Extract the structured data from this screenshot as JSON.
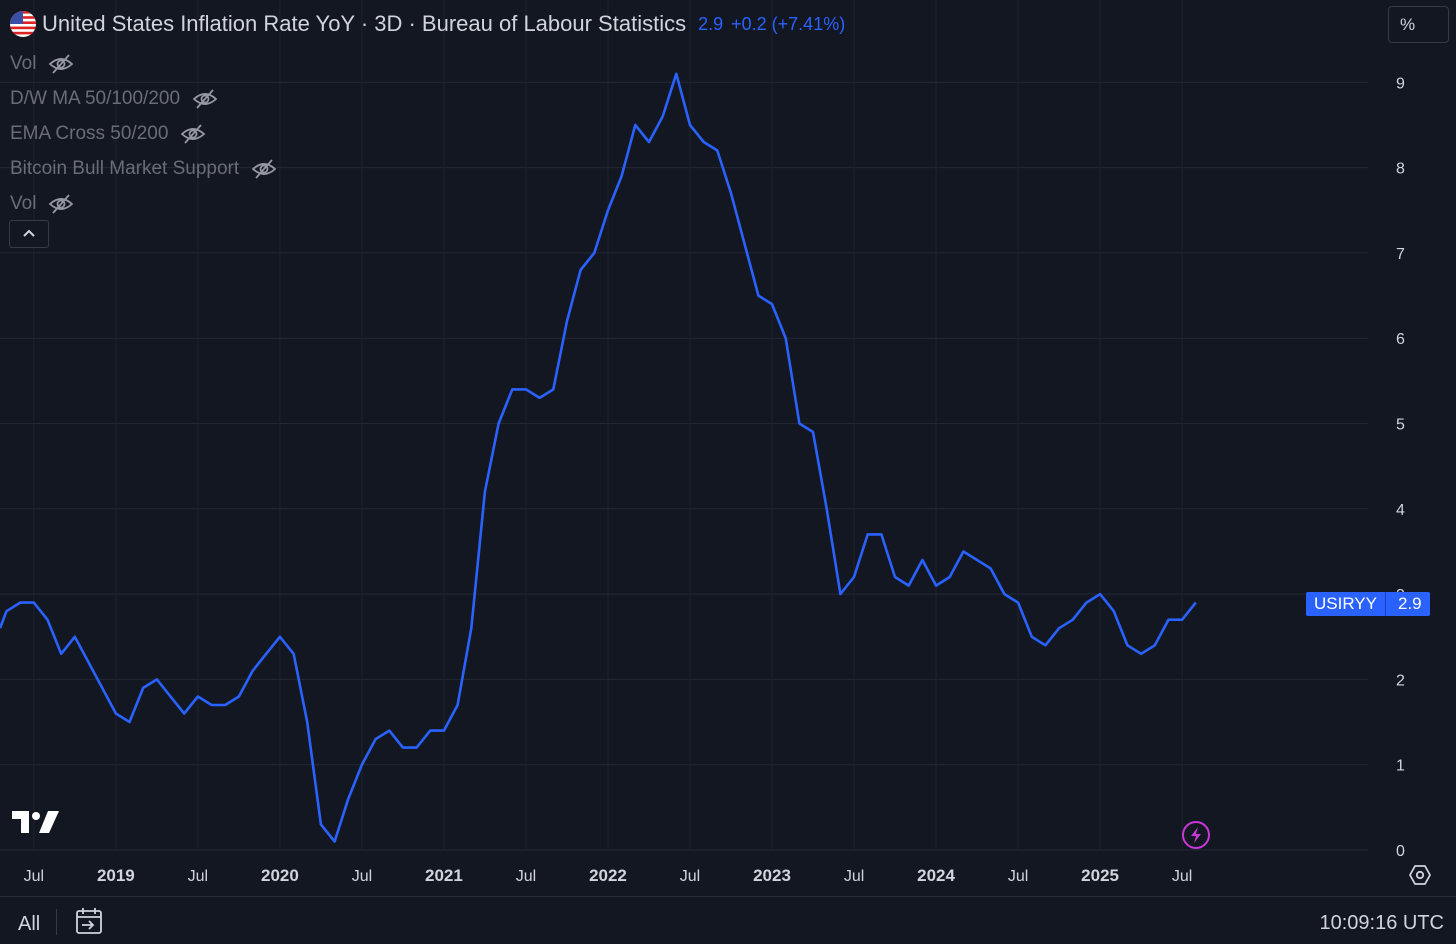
{
  "header": {
    "title": "United States Inflation Rate YoY · 3D · Bureau of Labour Statistics",
    "value": "2.9",
    "change": "+0.2 (+7.41%)"
  },
  "indicators": [
    {
      "label": "Vol"
    },
    {
      "label": "D/W MA 50/100/200"
    },
    {
      "label": "EMA Cross 50/200"
    },
    {
      "label": "Bitcoin Bull Market Support"
    },
    {
      "label": "Vol"
    }
  ],
  "scale_button": "%",
  "price_tag": {
    "symbol": "USIRYY",
    "value": "2.9"
  },
  "footer": {
    "range": "All",
    "time": "10:09:16 UTC"
  },
  "icons": [
    "us-flag-icon",
    "eye-off-icon",
    "chevron-up-icon",
    "tradingview-logo",
    "lightning-icon",
    "settings-icon",
    "calendar-range-icon"
  ],
  "colors": {
    "background": "#131722",
    "line": "#2962ff",
    "grid": "#2a2e39",
    "text": "#d1d4dc",
    "muted": "#6a6d78",
    "lightning": "#c837d8"
  },
  "chart_data": {
    "type": "line",
    "series": [
      {
        "name": "USIRYY",
        "x": [
          "2018-05",
          "2018-06",
          "2018-07",
          "2018-08",
          "2018-09",
          "2018-10",
          "2018-11",
          "2018-12",
          "2019-01",
          "2019-02",
          "2019-03",
          "2019-04",
          "2019-05",
          "2019-06",
          "2019-07",
          "2019-08",
          "2019-09",
          "2019-10",
          "2019-11",
          "2019-12",
          "2020-01",
          "2020-02",
          "2020-03",
          "2020-04",
          "2020-05",
          "2020-06",
          "2020-07",
          "2020-08",
          "2020-09",
          "2020-10",
          "2020-11",
          "2020-12",
          "2021-01",
          "2021-02",
          "2021-03",
          "2021-04",
          "2021-05",
          "2021-06",
          "2021-07",
          "2021-08",
          "2021-09",
          "2021-10",
          "2021-11",
          "2021-12",
          "2022-01",
          "2022-02",
          "2022-03",
          "2022-04",
          "2022-05",
          "2022-06",
          "2022-07",
          "2022-08",
          "2022-09",
          "2022-10",
          "2022-11",
          "2022-12",
          "2023-01",
          "2023-02",
          "2023-03",
          "2023-04",
          "2023-05",
          "2023-06",
          "2023-07",
          "2023-08",
          "2023-09",
          "2023-10",
          "2023-11",
          "2023-12",
          "2024-01",
          "2024-02",
          "2024-03",
          "2024-04",
          "2024-05",
          "2024-06",
          "2024-07",
          "2024-08",
          "2024-09",
          "2024-10",
          "2024-11",
          "2024-12",
          "2025-01",
          "2025-02",
          "2025-03",
          "2025-04",
          "2025-05",
          "2025-06",
          "2025-07",
          "2025-08"
        ],
        "y": [
          2.8,
          2.9,
          2.9,
          2.7,
          2.3,
          2.5,
          2.2,
          1.9,
          1.6,
          1.5,
          1.9,
          2.0,
          1.8,
          1.6,
          1.8,
          1.7,
          1.7,
          1.8,
          2.1,
          2.3,
          2.5,
          2.3,
          1.5,
          0.3,
          0.1,
          0.6,
          1.0,
          1.3,
          1.4,
          1.2,
          1.2,
          1.4,
          1.4,
          1.7,
          2.6,
          4.2,
          5.0,
          5.4,
          5.4,
          5.3,
          5.4,
          6.2,
          6.8,
          7.0,
          7.5,
          7.9,
          8.5,
          8.3,
          8.6,
          9.1,
          8.5,
          8.3,
          8.2,
          7.7,
          7.1,
          6.5,
          6.4,
          6.0,
          5.0,
          4.9,
          4.0,
          3.0,
          3.2,
          3.7,
          3.7,
          3.2,
          3.1,
          3.4,
          3.1,
          3.2,
          3.5,
          3.4,
          3.3,
          3.0,
          2.9,
          2.5,
          2.4,
          2.6,
          2.7,
          2.9,
          3.0,
          2.8,
          2.4,
          2.3,
          2.4,
          2.7,
          2.7,
          2.9
        ]
      }
    ],
    "x_ticks": [
      "Jul",
      "2019",
      "Jul",
      "2020",
      "Jul",
      "2021",
      "Jul",
      "2022",
      "Jul",
      "2023",
      "Jul",
      "2024",
      "Jul",
      "2025",
      "Jul"
    ],
    "y_ticks": [
      "0",
      "1",
      "2",
      "3",
      "4",
      "5",
      "6",
      "7",
      "8",
      "9"
    ],
    "ylim": [
      0,
      9.3
    ],
    "grid": true,
    "last_value": 2.9
  }
}
